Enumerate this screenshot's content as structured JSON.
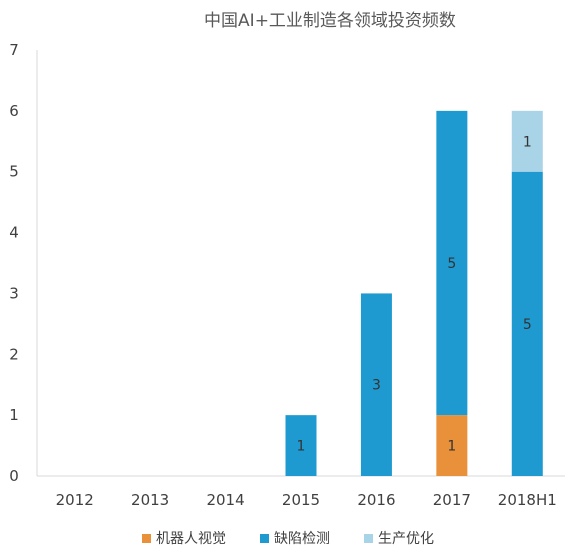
{
  "chart_data": {
    "type": "bar",
    "stacked": true,
    "title": "中国AI+工业制造各领域投资频数",
    "xlabel": "",
    "ylabel": "",
    "ylim": [
      0,
      7
    ],
    "yticks": [
      "0",
      "1",
      "2",
      "3",
      "4",
      "5",
      "6",
      "7"
    ],
    "categories": [
      "2012",
      "2013",
      "2014",
      "2015",
      "2016",
      "2017",
      "2018H1"
    ],
    "series": [
      {
        "name": "机器人视觉",
        "color": "#E8913A",
        "values": [
          0,
          0,
          0,
          0,
          0,
          1,
          0
        ],
        "labels": [
          "",
          "",
          "",
          "",
          "",
          "1",
          ""
        ]
      },
      {
        "name": "缺陷检测",
        "color": "#1F9AD1",
        "values": [
          0,
          0,
          0,
          1,
          3,
          5,
          5
        ],
        "labels": [
          "",
          "",
          "",
          "1",
          "3",
          "5",
          "5"
        ]
      },
      {
        "name": "生产优化",
        "color": "#A9D3E6",
        "values": [
          0,
          0,
          0,
          0,
          0,
          0,
          1
        ],
        "labels": [
          "",
          "",
          "",
          "",
          "",
          "",
          "1"
        ]
      }
    ],
    "grid": false,
    "legend": "bottom"
  }
}
